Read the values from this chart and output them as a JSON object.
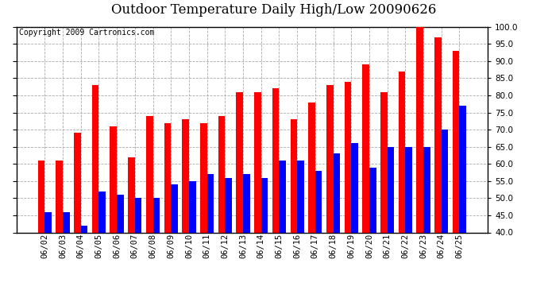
{
  "title": "Outdoor Temperature Daily High/Low 20090626",
  "copyright": "Copyright 2009 Cartronics.com",
  "dates": [
    "06/02",
    "06/03",
    "06/04",
    "06/05",
    "06/06",
    "06/07",
    "06/08",
    "06/09",
    "06/10",
    "06/11",
    "06/12",
    "06/13",
    "06/14",
    "06/15",
    "06/16",
    "06/17",
    "06/18",
    "06/19",
    "06/20",
    "06/21",
    "06/22",
    "06/23",
    "06/24",
    "06/25"
  ],
  "highs": [
    61,
    61,
    69,
    83,
    71,
    62,
    74,
    72,
    73,
    72,
    74,
    81,
    81,
    82,
    73,
    78,
    83,
    84,
    89,
    81,
    87,
    100,
    97,
    93
  ],
  "lows": [
    46,
    46,
    42,
    52,
    51,
    50,
    50,
    54,
    55,
    57,
    56,
    57,
    56,
    61,
    61,
    58,
    63,
    66,
    59,
    65,
    65,
    65,
    70,
    77
  ],
  "bar_width": 0.38,
  "high_color": "#ff0000",
  "low_color": "#0000ff",
  "bg_color": "#ffffff",
  "grid_color": "#aaaaaa",
  "ylim": [
    40,
    100
  ],
  "yticks": [
    40.0,
    45.0,
    50.0,
    55.0,
    60.0,
    65.0,
    70.0,
    75.0,
    80.0,
    85.0,
    90.0,
    95.0,
    100.0
  ],
  "title_fontsize": 12,
  "tick_fontsize": 7.5,
  "copyright_fontsize": 7
}
